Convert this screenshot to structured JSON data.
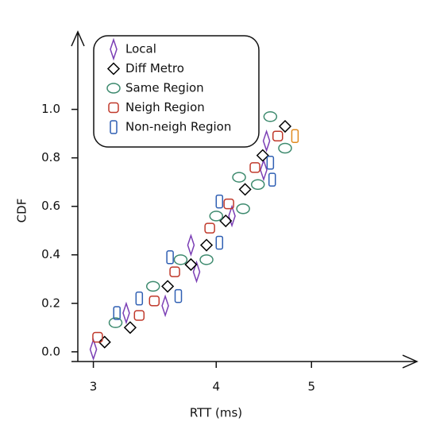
{
  "chart_data": {
    "type": "scatter",
    "x_label": "RTT (ms)",
    "y_label": "CDF",
    "xscale": "log",
    "legend": "upper left",
    "xlim": [
      2.85,
      6.4
    ],
    "ylim": [
      -0.04,
      1.32
    ],
    "xticks": [
      3,
      4,
      5
    ],
    "yticks": [
      {
        "value": 0,
        "label": "0.0"
      },
      {
        "value": 0.2,
        "label": "0.2"
      },
      {
        "value": 0.4,
        "label": "0.4"
      },
      {
        "value": 0.6,
        "label": "0.6"
      },
      {
        "value": 0.8,
        "label": "0.8"
      },
      {
        "value": 1,
        "label": "1.0"
      }
    ],
    "series": [
      {
        "name": "Local",
        "color": "#7b3fb5",
        "marker": "thin-diamond",
        "x": [
          3.0,
          3.24,
          3.55,
          3.77,
          3.82,
          4.15,
          4.47,
          4.5
        ],
        "values": [
          0.01,
          0.16,
          0.19,
          0.44,
          0.33,
          0.56,
          0.75,
          0.87
        ]
      },
      {
        "name": "Diff Metro",
        "color": "#000000",
        "marker": "diamond",
        "x": [
          3.08,
          3.27,
          3.57,
          3.77,
          3.91,
          4.09,
          4.28,
          4.46,
          4.7
        ],
        "values": [
          0.04,
          0.1,
          0.27,
          0.36,
          0.44,
          0.54,
          0.67,
          0.81,
          0.93
        ]
      },
      {
        "name": "Same Region",
        "color": "#3d8a6e",
        "marker": "ellipse",
        "x": [
          3.16,
          3.45,
          3.68,
          3.91,
          4.0,
          4.26,
          4.22,
          4.41,
          4.54,
          4.7
        ],
        "values": [
          0.12,
          0.27,
          0.38,
          0.38,
          0.56,
          0.59,
          0.72,
          0.69,
          0.97,
          0.84
        ]
      },
      {
        "name": "Neigh Region",
        "color": "#c0392b",
        "marker": "square",
        "x": [
          3.03,
          3.34,
          3.46,
          3.63,
          3.94,
          4.12,
          4.38,
          4.62
        ],
        "values": [
          0.06,
          0.15,
          0.21,
          0.33,
          0.51,
          0.61,
          0.76,
          0.89
        ]
      },
      {
        "name": "Non-neigh Region",
        "color": "#2f5fb3",
        "marker": "tall-rect",
        "point_colors": [
          "#2f5fb3",
          "#2f5fb3",
          "#2f5fb3",
          "#2f5fb3",
          "#2f5fb3",
          "#2f5fb3",
          "#2f5fb3",
          "#2f5fb3",
          "#e08a1e"
        ],
        "x": [
          3.17,
          3.34,
          3.59,
          3.66,
          4.03,
          4.03,
          4.54,
          4.56,
          4.81
        ],
        "values": [
          0.16,
          0.22,
          0.39,
          0.23,
          0.62,
          0.45,
          0.78,
          0.71,
          0.89
        ]
      }
    ]
  }
}
